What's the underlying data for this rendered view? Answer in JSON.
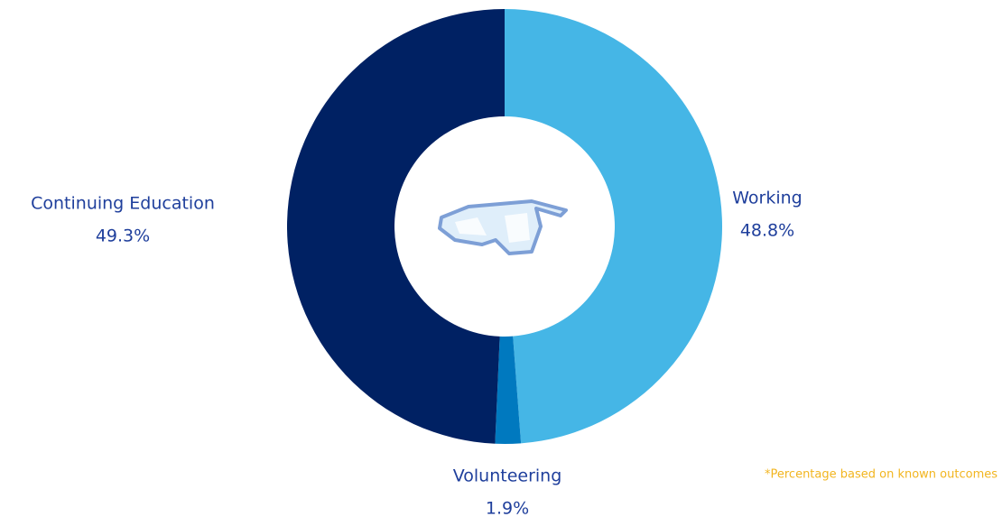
{
  "chart_data": {
    "type": "donut",
    "categories": [
      "Working",
      "Volunteering",
      "Continuing Education"
    ],
    "values": [
      48.8,
      1.9,
      49.3
    ],
    "value_labels": [
      "48.8%",
      "1.9%",
      "49.3%"
    ],
    "colors": [
      "#45b6e6",
      "#0079bf",
      "#002163"
    ],
    "footnote": "*Percentage based on known outcomes"
  }
}
